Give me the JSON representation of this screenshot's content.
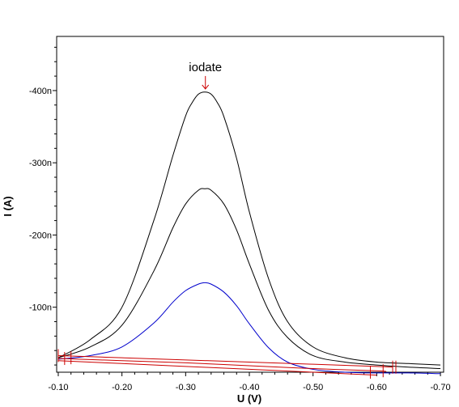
{
  "chart_data": {
    "type": "line",
    "title": "",
    "xlabel": "U (V)",
    "ylabel": "I (A)",
    "xlim": [
      -0.0975,
      -0.705
    ],
    "ylim": [
      -10,
      -475
    ],
    "x_ticks": [
      -0.1,
      -0.2,
      -0.3,
      -0.4,
      -0.5,
      -0.6,
      -0.7
    ],
    "x_tick_labels": [
      "-0.10",
      "-0.20",
      "-0.30",
      "-0.40",
      "-0.50",
      "-0.60",
      "-0.70"
    ],
    "y_ticks": [
      -100,
      -200,
      -300,
      -400
    ],
    "y_tick_labels": [
      "-100n",
      "-200n",
      "-300n",
      "-400n"
    ],
    "annotation": {
      "text": "iodate",
      "x": -0.331,
      "y": -400,
      "color": "#cc0000"
    },
    "series": [
      {
        "color": "#000000",
        "x": [
          -0.1,
          -0.15,
          -0.2,
          -0.25,
          -0.28,
          -0.3,
          -0.31,
          -0.32,
          -0.33,
          -0.34,
          -0.35,
          -0.36,
          -0.38,
          -0.4,
          -0.43,
          -0.46,
          -0.5,
          -0.55,
          -0.6,
          -0.65,
          -0.7
        ],
        "values": [
          -30,
          -55,
          -100,
          -220,
          -310,
          -365,
          -383,
          -395,
          -398,
          -395,
          -383,
          -364,
          -306,
          -232,
          -140,
          -80,
          -45,
          -30,
          -24,
          -22,
          -20
        ]
      },
      {
        "color": "#000000",
        "x": [
          -0.1,
          -0.15,
          -0.2,
          -0.25,
          -0.28,
          -0.3,
          -0.32,
          -0.33,
          -0.34,
          -0.36,
          -0.38,
          -0.4,
          -0.43,
          -0.46,
          -0.5,
          -0.55,
          -0.6,
          -0.65,
          -0.7
        ],
        "values": [
          -30,
          -45,
          -75,
          -150,
          -210,
          -243,
          -262,
          -264,
          -262,
          -243,
          -207,
          -160,
          -96,
          -58,
          -33,
          -24,
          -20,
          -17,
          -15
        ]
      },
      {
        "color": "#0000cc",
        "x": [
          -0.1,
          -0.15,
          -0.2,
          -0.25,
          -0.28,
          -0.3,
          -0.32,
          -0.33,
          -0.34,
          -0.36,
          -0.38,
          -0.4,
          -0.43,
          -0.46,
          -0.5,
          -0.55,
          -0.6,
          -0.65,
          -0.7
        ],
        "values": [
          -28,
          -33,
          -45,
          -78,
          -107,
          -123,
          -132,
          -134,
          -132,
          -121,
          -102,
          -77,
          -44,
          -24,
          -14,
          -10,
          -9,
          -9,
          -8
        ]
      },
      {
        "color": "#cc0000",
        "x": [
          -0.1,
          -0.2,
          -0.3,
          -0.4,
          -0.5,
          -0.6,
          -0.625
        ],
        "values": [
          -33,
          -30,
          -27,
          -24,
          -21,
          -18,
          -17
        ]
      },
      {
        "color": "#cc0000",
        "x": [
          -0.1,
          -0.2,
          -0.3,
          -0.4,
          -0.5,
          -0.6,
          -0.615
        ],
        "values": [
          -29,
          -26,
          -23,
          -19,
          -15,
          -12,
          -11
        ]
      },
      {
        "color": "#cc0000",
        "x": [
          -0.1,
          -0.2,
          -0.3,
          -0.4,
          -0.5,
          -0.6
        ],
        "values": [
          -26,
          -22,
          -18,
          -14,
          -10,
          -6
        ]
      }
    ],
    "markers": [
      {
        "color": "#cc0000",
        "x": -0.1,
        "y": -33
      },
      {
        "color": "#cc0000",
        "x": -0.11,
        "y": -29
      },
      {
        "color": "#cc0000",
        "x": -0.12,
        "y": -30
      },
      {
        "color": "#cc0000",
        "x": -0.59,
        "y": -10
      },
      {
        "color": "#cc0000",
        "x": -0.61,
        "y": -12
      },
      {
        "color": "#cc0000",
        "x": -0.625,
        "y": -17
      },
      {
        "color": "#cc0000",
        "x": -0.63,
        "y": -17
      }
    ],
    "grid": false,
    "legend": "none"
  }
}
